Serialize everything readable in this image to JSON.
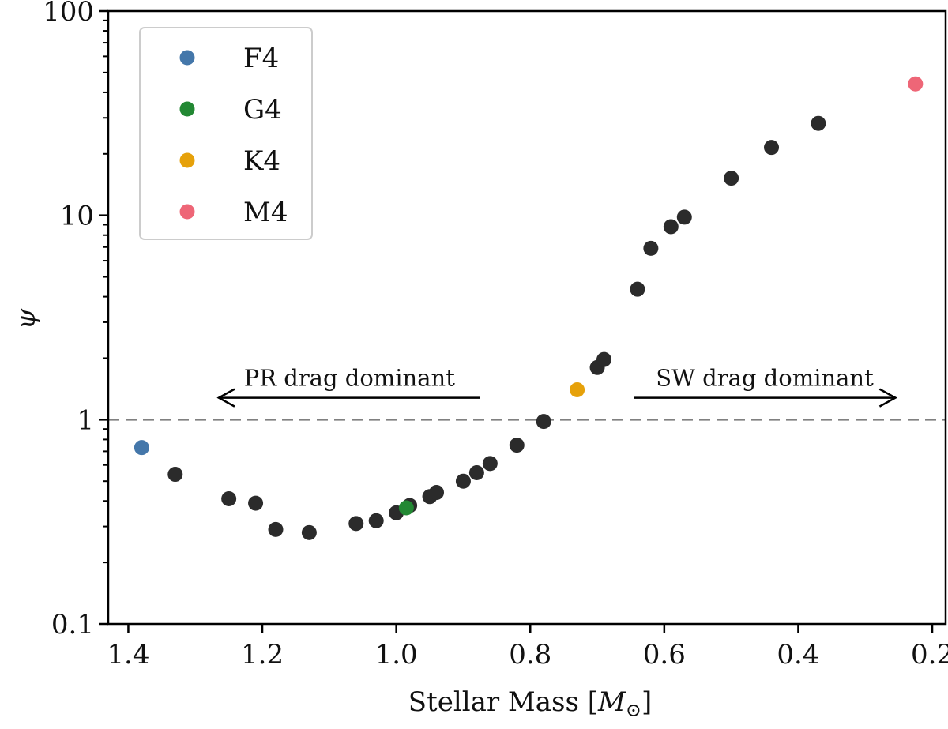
{
  "chart_data": {
    "type": "scatter",
    "xlabel": "Stellar Mass [M",
    "xlabel_sub": "⊙",
    "xlabel_close": "]",
    "ylabel": "ψ",
    "x_reversed": true,
    "xlim": [
      1.43,
      0.18
    ],
    "ylim": [
      0.1,
      100
    ],
    "y_scale": "log",
    "x_ticks": [
      1.4,
      1.2,
      1.0,
      0.8,
      0.6,
      0.4,
      0.2
    ],
    "x_tick_labels": [
      "1.4",
      "1.2",
      "1.0",
      "0.8",
      "0.6",
      "0.4",
      "0.2"
    ],
    "y_ticks": [
      0.1,
      1,
      10,
      100
    ],
    "y_tick_labels": [
      "0.1",
      "1",
      "10",
      "100"
    ],
    "grid": false,
    "reference_line": {
      "y": 1,
      "style": "dashed",
      "color": "#808080"
    },
    "legend_position": "top-left",
    "series": [
      {
        "name": "",
        "color": "#2b2b2b",
        "points": [
          [
            1.33,
            0.54
          ],
          [
            1.25,
            0.41
          ],
          [
            1.21,
            0.39
          ],
          [
            1.18,
            0.29
          ],
          [
            1.13,
            0.28
          ],
          [
            1.06,
            0.31
          ],
          [
            1.03,
            0.32
          ],
          [
            1.0,
            0.35
          ],
          [
            0.98,
            0.38
          ],
          [
            0.95,
            0.42
          ],
          [
            0.94,
            0.44
          ],
          [
            0.9,
            0.5
          ],
          [
            0.88,
            0.55
          ],
          [
            0.86,
            0.61
          ],
          [
            0.82,
            0.75
          ],
          [
            0.78,
            0.98
          ],
          [
            0.7,
            1.8
          ],
          [
            0.69,
            1.97
          ],
          [
            0.64,
            4.35
          ],
          [
            0.62,
            6.9
          ],
          [
            0.59,
            8.8
          ],
          [
            0.57,
            9.8
          ],
          [
            0.5,
            15.2
          ],
          [
            0.44,
            21.5
          ],
          [
            0.37,
            28.2
          ]
        ]
      },
      {
        "name": "F4",
        "color": "#4477aa",
        "points": [
          [
            1.38,
            0.73
          ]
        ]
      },
      {
        "name": "G4",
        "color": "#228833",
        "points": [
          [
            0.985,
            0.37
          ]
        ]
      },
      {
        "name": "K4",
        "color": "#e6a10a",
        "points": [
          [
            0.73,
            1.4
          ]
        ]
      },
      {
        "name": "M4",
        "color": "#ee6677",
        "points": [
          [
            0.225,
            44
          ]
        ]
      }
    ],
    "annotations": [
      {
        "text": "PR drag dominant",
        "arrow_from": 0.875,
        "arrow_to": 1.265,
        "y": 1.28
      },
      {
        "text": "SW drag dominant",
        "arrow_from": 0.645,
        "arrow_to": 0.255,
        "y": 1.28
      }
    ]
  }
}
